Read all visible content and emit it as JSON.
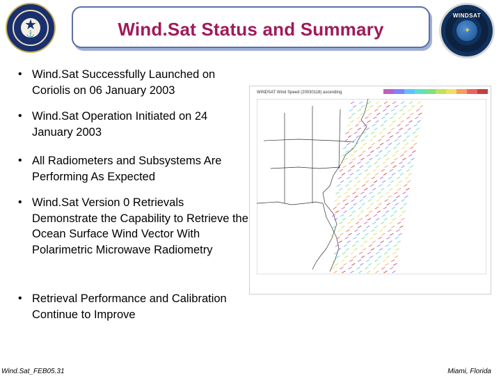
{
  "title": "Wind.Sat Status and Summary",
  "bullets": [
    "Wind.Sat Successfully Launched on Coriolis on 06 January 2003",
    "Wind.Sat Operation Initiated on 24 January 2003",
    "All Radiometers and Subsystems Are Performing As Expected",
    "Wind.Sat Version 0 Retrievals Demonstrate the Capability to Retrieve the Ocean Surface Wind Vector With Polarimetric Microwave Radiometry",
    "Retrieval Performance and Calibration Continue to Improve"
  ],
  "bullet_symbol": "•",
  "seals": {
    "left_icon": "navy-seal-icon",
    "right_icon": "windsat-logo-icon",
    "right_text": "WINDSAT"
  },
  "map": {
    "icon": "wind-vector-map",
    "header": "WINDSAT Wind Speed (20030118) ascending",
    "colorbar_colors": [
      "#c060c0",
      "#8080ff",
      "#60c0ff",
      "#60e0c0",
      "#80e080",
      "#c0e060",
      "#f0e060",
      "#f0a060",
      "#f06060",
      "#c04040"
    ]
  },
  "footer": {
    "left": "Wind.Sat_FEB05.31",
    "right": "Miami, Florida"
  },
  "colors": {
    "title": "#a01a5a",
    "title_border": "#5a6ea8"
  }
}
